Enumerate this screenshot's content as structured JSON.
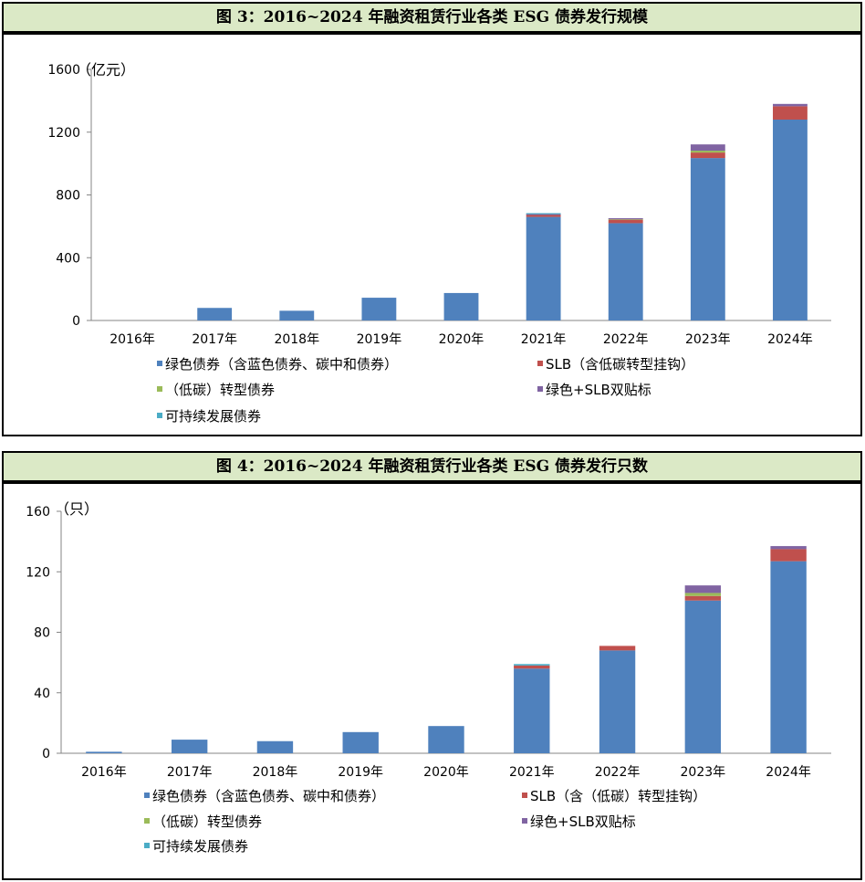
{
  "chart_data": [
    {
      "type": "bar",
      "stacked": true,
      "title": "图 3：2016~2024 年融资租赁行业各类 ESG 债券发行规模",
      "unit_label": "（亿元）",
      "categories": [
        "2016年",
        "2017年",
        "2018年",
        "2019年",
        "2020年",
        "2021年",
        "2022年",
        "2023年",
        "2024年"
      ],
      "ylim": [
        0,
        1600
      ],
      "yticks": [
        0,
        400,
        800,
        1200,
        1600
      ],
      "series": [
        {
          "name": "绿色债券（含蓝色债券、碳中和债券）",
          "color": "#4f81bd",
          "values": [
            0,
            80,
            62,
            145,
            175,
            660,
            620,
            1035,
            1280
          ]
        },
        {
          "name": "SLB（含低碳转型挂钩）",
          "color": "#c0504d",
          "values": [
            0,
            0,
            0,
            0,
            0,
            12,
            22,
            35,
            85
          ]
        },
        {
          "name": "（低碳）转型债券",
          "color": "#9bbb59",
          "values": [
            0,
            0,
            0,
            0,
            0,
            0,
            3,
            12,
            0
          ]
        },
        {
          "name": "绿色+SLB双贴标",
          "color": "#8064a2",
          "values": [
            0,
            0,
            0,
            0,
            0,
            5,
            4,
            40,
            15
          ]
        },
        {
          "name": "可持续发展债券",
          "color": "#4bacc6",
          "values": [
            0,
            0,
            0,
            0,
            0,
            3,
            0,
            0,
            0
          ]
        }
      ],
      "legend": [
        "绿色债券（含蓝色债券、碳中和债券）",
        "SLB（含低碳转型挂钩）",
        "（低碳）转型债券",
        "绿色+SLB双贴标",
        "可持续发展债券"
      ]
    },
    {
      "type": "bar",
      "stacked": true,
      "title": "图 4：2016~2024 年融资租赁行业各类 ESG 债券发行只数",
      "unit_label": "（只）",
      "categories": [
        "2016年",
        "2017年",
        "2018年",
        "2019年",
        "2020年",
        "2021年",
        "2022年",
        "2023年",
        "2024年"
      ],
      "ylim": [
        0,
        160
      ],
      "yticks": [
        0,
        40,
        80,
        120,
        160
      ],
      "series": [
        {
          "name": "绿色债券（含蓝色债券、碳中和债券）",
          "color": "#4f81bd",
          "values": [
            1,
            9,
            8,
            14,
            18,
            56,
            68,
            101,
            127
          ]
        },
        {
          "name": "SLB（含（低碳）转型挂钩）",
          "color": "#c0504d",
          "values": [
            0,
            0,
            0,
            0,
            0,
            2,
            3,
            3,
            8
          ]
        },
        {
          "name": "（低碳）转型债券",
          "color": "#9bbb59",
          "values": [
            0,
            0,
            0,
            0,
            0,
            0,
            0,
            2,
            0
          ]
        },
        {
          "name": "绿色+SLB双贴标",
          "color": "#8064a2",
          "values": [
            0,
            0,
            0,
            0,
            0,
            0,
            0,
            5,
            2
          ]
        },
        {
          "name": "可持续发展债券",
          "color": "#4bacc6",
          "values": [
            0,
            0,
            0,
            0,
            0,
            1,
            0,
            0,
            0
          ]
        }
      ],
      "legend": [
        "绿色债券（含蓝色债券、碳中和债券）",
        "SLB（含（低碳）转型挂钩）",
        "（低碳）转型债券",
        "绿色+SLB双贴标",
        "可持续发展债券"
      ]
    }
  ]
}
